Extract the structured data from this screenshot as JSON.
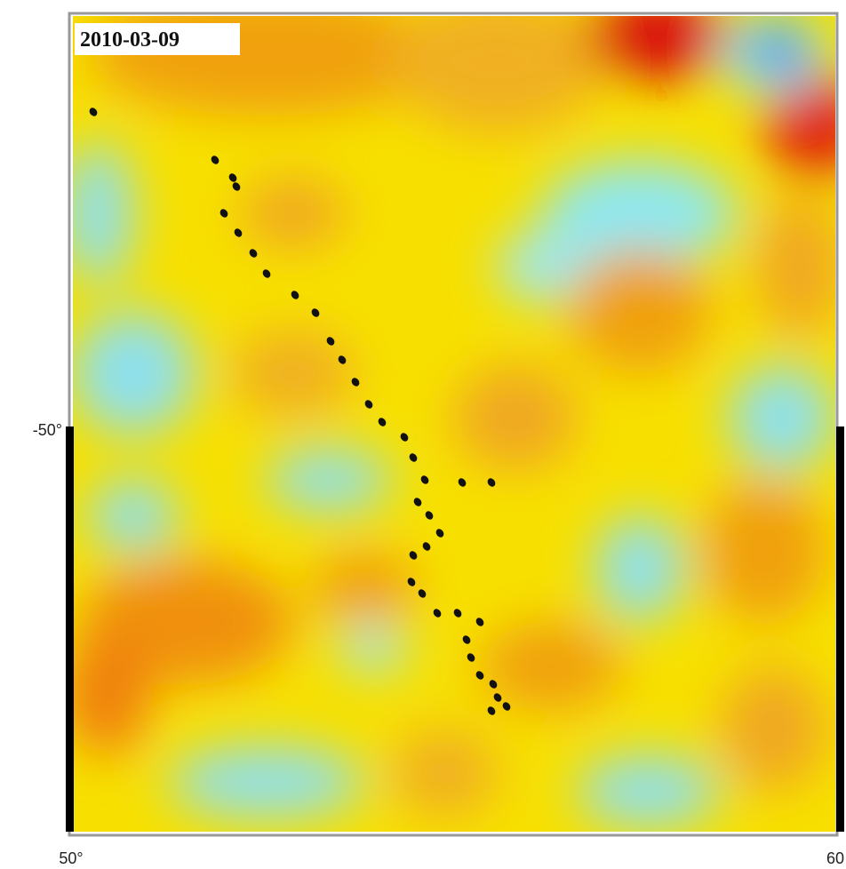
{
  "map": {
    "date_label": "2010-03-09",
    "y_label": "-50°",
    "x_labels": [
      "50°",
      "60"
    ]
  }
}
